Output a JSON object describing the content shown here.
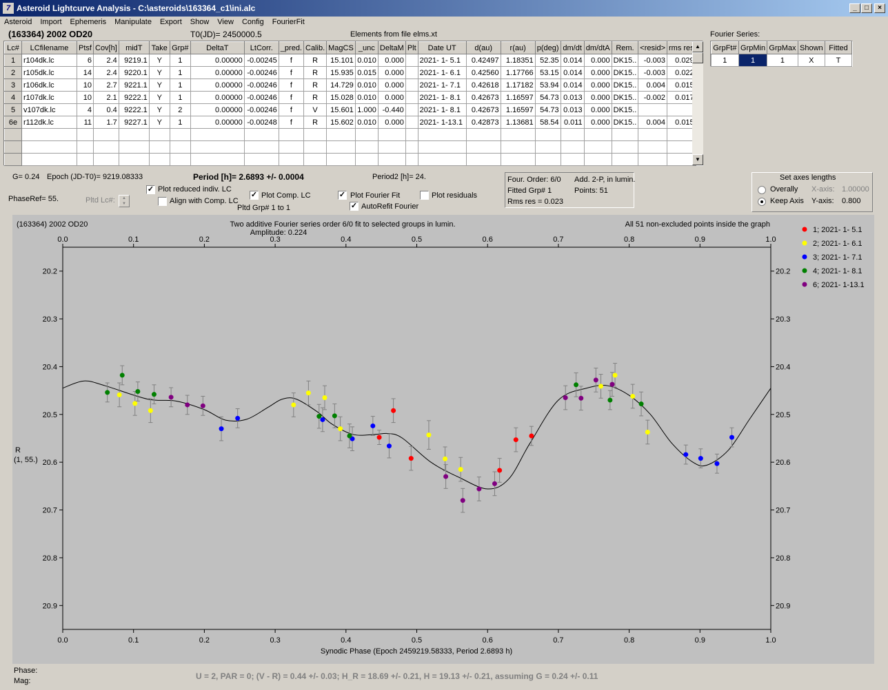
{
  "window": {
    "title": "Asteroid Lightcurve Analysis - C:\\asteroids\\163364_c1\\ini.alc",
    "app_icon": "7",
    "btn_min": "_",
    "btn_max": "□",
    "btn_close": "×"
  },
  "menu": [
    "Asteroid",
    "Import",
    "Ephemeris",
    "Manipulate",
    "Export",
    "Show",
    "View",
    "Config",
    "FourierFit"
  ],
  "header": {
    "object": "(163364) 2002 OD20",
    "t0": "T0(JD)= 2450000.5",
    "elements": "Elements from file elms.xt",
    "fourier_series_label": "Fourier Series:"
  },
  "lc_table": {
    "columns": [
      "Lc#",
      "LCfilename",
      "Ptsf",
      "Cov[h]",
      "midT",
      "Take",
      "Grp#",
      "DeltaT",
      "LtCorr.",
      "_pred.",
      "Calib.",
      "MagCS",
      "_unc",
      "DeltaM",
      "Plt",
      "Date UT",
      "d(au)",
      "r(au)",
      "p(deg)",
      "dm/dt",
      "dm/dtA",
      "Rem.",
      "<resid>",
      "rms res"
    ],
    "rows": [
      [
        "1",
        "r104dk.lc",
        "6",
        "2.4",
        "9219.1",
        "Y",
        "1",
        "0.00000",
        "-0.00245",
        "f",
        "R",
        "15.101",
        "0.010",
        "0.000",
        "",
        "2021- 1- 5.1",
        "0.42497",
        "1.18351",
        "52.35",
        "0.014",
        "0.000",
        "DK15..",
        "-0.003",
        "0.029"
      ],
      [
        "2",
        "r105dk.lc",
        "14",
        "2.4",
        "9220.1",
        "Y",
        "1",
        "0.00000",
        "-0.00246",
        "f",
        "R",
        "15.935",
        "0.015",
        "0.000",
        "",
        "2021- 1- 6.1",
        "0.42560",
        "1.17766",
        "53.15",
        "0.014",
        "0.000",
        "DK15..",
        "-0.003",
        "0.022"
      ],
      [
        "3",
        "r106dk.lc",
        "10",
        "2.7",
        "9221.1",
        "Y",
        "1",
        "0.00000",
        "-0.00246",
        "f",
        "R",
        "14.729",
        "0.010",
        "0.000",
        "",
        "2021- 1- 7.1",
        "0.42618",
        "1.17182",
        "53.94",
        "0.014",
        "0.000",
        "DK15..",
        "0.004",
        "0.015"
      ],
      [
        "4",
        "r107dk.lc",
        "10",
        "2.1",
        "9222.1",
        "Y",
        "1",
        "0.00000",
        "-0.00246",
        "f",
        "R",
        "15.028",
        "0.010",
        "0.000",
        "",
        "2021- 1- 8.1",
        "0.42673",
        "1.16597",
        "54.73",
        "0.013",
        "0.000",
        "DK15..",
        "-0.002",
        "0.017"
      ],
      [
        "5",
        "v107dk.lc",
        "4",
        "0.4",
        "9222.1",
        "Y",
        "2",
        "0.00000",
        "-0.00246",
        "f",
        "V",
        "15.601",
        "1.000",
        "-0.440",
        "",
        "2021- 1- 8.1",
        "0.42673",
        "1.16597",
        "54.73",
        "0.013",
        "0.000",
        "DK15..",
        "",
        ""
      ],
      [
        "6e",
        "r112dk.lc",
        "11",
        "1.7",
        "9227.1",
        "Y",
        "1",
        "0.00000",
        "-0.00248",
        "f",
        "R",
        "15.602",
        "0.010",
        "0.000",
        "",
        "2021- 1-13.1",
        "0.42873",
        "1.13681",
        "58.54",
        "0.011",
        "0.000",
        "DK15..",
        "0.004",
        "0.015"
      ]
    ]
  },
  "fourier_table": {
    "columns": [
      "GrpFt#",
      "GrpMin",
      "GrpMax",
      "Shown",
      "Fitted"
    ],
    "row": [
      "1",
      "1",
      "1",
      "X",
      "T"
    ]
  },
  "info": {
    "g": "G= 0.24",
    "epoch": "Epoch (JD-T0)= 9219.08333",
    "period": "Period [h]= 2.6893 +/- 0.0004",
    "period2": "Period2 [h]= 24.",
    "phaseref": "PhaseRef= 55.",
    "pltd_lc": "Pltd Lc#:",
    "plot_reduced": "Plot reduced indiv. LC",
    "align_comp": "Align with Comp. LC",
    "plot_comp": "Plot Comp. LC",
    "pltd_grp": "Pltd Grp#  1   to   1",
    "plot_fourier": "Plot Fourier Fit",
    "autorefit": "AutoRefit Fourier",
    "plot_residuals": "Plot residuals",
    "checked": "✓",
    "four_order": "Four. Order:  6/0",
    "add": "Add. 2-P, in lumin.",
    "fitted_grp": "Fitted Grp# 1",
    "points": "Points: 51",
    "rms": "Rms res      = 0.023"
  },
  "axes_panel": {
    "title": "Set axes lengths",
    "overally": "Overally",
    "keep_axis": "Keep Axis",
    "x_axis_label": "X-axis:",
    "x_axis_value": "1.00000",
    "y_axis_label": "Y-axis:",
    "y_axis_value": "0.800"
  },
  "chart_data": {
    "type": "scatter",
    "title_left": "(163364) 2002 OD20",
    "title_center": "Two additive Fourier series order 6/0 fit to selected groups in lumin.",
    "amplitude": "Amplitude: 0.224",
    "title_right": "All 51 non-excluded points inside the graph",
    "xlabel": "Synodic Phase (Epoch 2459219.58333, Period 2.6893 h)",
    "ylabel": "R",
    "ylabel2": "(1, 55.)",
    "xlim": [
      0,
      1
    ],
    "ylim": [
      20.95,
      20.15
    ],
    "xticks": [
      "0.0",
      "0.1",
      "0.2",
      "0.3",
      "0.4",
      "0.5",
      "0.6",
      "0.7",
      "0.8",
      "0.9",
      "1.0"
    ],
    "yticks": [
      "20.2",
      "20.3",
      "20.4",
      "20.5",
      "20.6",
      "20.7",
      "20.8",
      "20.9"
    ],
    "series": [
      {
        "name": "1; 2021- 1- 5.1",
        "color": "#ff0000",
        "points": [
          [
            0.447,
            20.548,
            0.015
          ],
          [
            0.467,
            20.492,
            0.025
          ],
          [
            0.492,
            20.592,
            0.025
          ],
          [
            0.617,
            20.617,
            0.025
          ],
          [
            0.64,
            20.553,
            0.025
          ],
          [
            0.662,
            20.545,
            0.02
          ]
        ]
      },
      {
        "name": "2; 2021- 1- 6.1",
        "color": "#ffff00",
        "points": [
          [
            0.08,
            20.459,
            0.025
          ],
          [
            0.102,
            20.477,
            0.025
          ],
          [
            0.124,
            20.492,
            0.025
          ],
          [
            0.326,
            20.48,
            0.025
          ],
          [
            0.347,
            20.455,
            0.025
          ],
          [
            0.37,
            20.465,
            0.025
          ],
          [
            0.392,
            20.53,
            0.025
          ],
          [
            0.517,
            20.543,
            0.03
          ],
          [
            0.54,
            20.593,
            0.025
          ],
          [
            0.562,
            20.615,
            0.025
          ],
          [
            0.76,
            20.441,
            0.025
          ],
          [
            0.78,
            20.418,
            0.025
          ],
          [
            0.805,
            20.462,
            0.025
          ],
          [
            0.826,
            20.537,
            0.025
          ]
        ]
      },
      {
        "name": "3; 2021- 1- 7.1",
        "color": "#0000ff",
        "points": [
          [
            0.224,
            20.53,
            0.025
          ],
          [
            0.247,
            20.508,
            0.02
          ],
          [
            0.367,
            20.511,
            0.025
          ],
          [
            0.409,
            20.551,
            0.025
          ],
          [
            0.438,
            20.524,
            0.02
          ],
          [
            0.461,
            20.566,
            0.025
          ],
          [
            0.88,
            20.584,
            0.02
          ],
          [
            0.901,
            20.592,
            0.02
          ],
          [
            0.924,
            20.603,
            0.02
          ],
          [
            0.945,
            20.548,
            0.02
          ]
        ]
      },
      {
        "name": "4; 2021- 1- 8.1",
        "color": "#008000",
        "points": [
          [
            0.063,
            20.454,
            0.02
          ],
          [
            0.084,
            20.418,
            0.02
          ],
          [
            0.106,
            20.452,
            0.02
          ],
          [
            0.129,
            20.458,
            0.02
          ],
          [
            0.362,
            20.504,
            0.025
          ],
          [
            0.384,
            20.503,
            0.025
          ],
          [
            0.405,
            20.545,
            0.025
          ],
          [
            0.725,
            20.438,
            0.025
          ],
          [
            0.773,
            20.47,
            0.02
          ],
          [
            0.817,
            20.478,
            0.025
          ]
        ]
      },
      {
        "name": "6; 2021- 1-13.1",
        "color": "#800080",
        "points": [
          [
            0.153,
            20.464,
            0.02
          ],
          [
            0.176,
            20.48,
            0.02
          ],
          [
            0.198,
            20.482,
            0.02
          ],
          [
            0.541,
            20.63,
            0.025
          ],
          [
            0.565,
            20.68,
            0.025
          ],
          [
            0.588,
            20.656,
            0.025
          ],
          [
            0.61,
            20.645,
            0.025
          ],
          [
            0.71,
            20.465,
            0.025
          ],
          [
            0.732,
            20.466,
            0.025
          ],
          [
            0.753,
            20.428,
            0.025
          ],
          [
            0.776,
            20.437,
            0.025
          ]
        ]
      }
    ],
    "fit_curve": {
      "x": [
        0.0,
        0.03,
        0.06,
        0.12,
        0.16,
        0.2,
        0.23,
        0.26,
        0.29,
        0.31,
        0.33,
        0.36,
        0.38,
        0.41,
        0.44,
        0.46,
        0.48,
        0.52,
        0.56,
        0.6,
        0.63,
        0.66,
        0.7,
        0.74,
        0.77,
        0.8,
        0.83,
        0.86,
        0.89,
        0.91,
        0.94,
        0.97,
        1.0
      ],
      "y": [
        20.445,
        20.43,
        20.44,
        20.468,
        20.472,
        20.49,
        20.512,
        20.51,
        20.485,
        20.468,
        20.468,
        20.495,
        20.52,
        20.542,
        20.542,
        20.54,
        20.55,
        20.6,
        20.632,
        20.656,
        20.635,
        20.56,
        20.47,
        20.445,
        20.44,
        20.46,
        20.5,
        20.56,
        20.6,
        20.606,
        20.575,
        20.51,
        20.445
      ]
    }
  },
  "status": {
    "phase": "Phase:",
    "mag": "Mag:",
    "summary": "U = 2, PAR = 0; (V - R) = 0.44 +/- 0.03; H_R = 18.69 +/- 0.21, H = 19.13 +/- 0.21, assuming G = 0.24 +/- 0.11"
  }
}
